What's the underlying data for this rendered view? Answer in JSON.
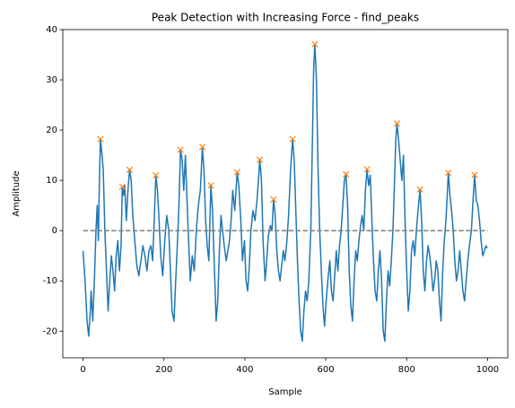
{
  "chart_data": {
    "type": "line",
    "title": "Peak Detection with Increasing Force - find_peaks",
    "xlabel": "Sample",
    "ylabel": "Amplitude",
    "xlim": [
      -50,
      1050
    ],
    "ylim": [
      -25.3,
      40
    ],
    "xticks": [
      0,
      200,
      400,
      600,
      800,
      1000
    ],
    "yticks": [
      -20,
      -10,
      0,
      10,
      20,
      30,
      40
    ],
    "grid": false,
    "series": [
      {
        "color": "#1f77b4",
        "style": "line",
        "x": [
          0,
          5,
          10,
          14,
          18,
          20,
          24,
          28,
          32,
          35,
          38,
          40,
          43,
          47,
          50,
          54,
          58,
          62,
          66,
          70,
          74,
          78,
          82,
          86,
          90,
          94,
          97,
          100,
          103,
          107,
          111,
          115,
          119,
          123,
          128,
          133,
          138,
          143,
          148,
          153,
          158,
          163,
          168,
          172,
          176,
          180,
          184,
          188,
          192,
          197,
          202,
          207,
          212,
          216,
          220,
          225,
          229,
          233,
          237,
          241,
          245,
          249,
          253,
          257,
          261,
          265,
          270,
          275,
          280,
          285,
          290,
          295,
          299,
          303,
          307,
          311,
          316,
          320,
          325,
          329,
          333,
          337,
          341,
          345,
          349,
          354,
          358,
          362,
          366,
          370,
          375,
          381,
          385,
          390,
          394,
          399,
          403,
          407,
          411,
          415,
          420,
          425,
          430,
          437,
          441,
          445,
          450,
          454,
          458,
          463,
          467,
          471,
          475,
          479,
          483,
          487,
          491,
          495,
          499,
          504,
          508,
          513,
          518,
          522,
          526,
          530,
          534,
          538,
          542,
          546,
          550,
          554,
          558,
          563,
          567,
          570,
          573,
          577,
          581,
          585,
          589,
          593,
          597,
          601,
          605,
          610,
          614,
          618,
          622,
          626,
          630,
          634,
          638,
          642,
          646,
          650,
          654,
          658,
          662,
          666,
          670,
          674,
          678,
          682,
          686,
          690,
          694,
          698,
          702,
          706,
          710,
          714,
          718,
          722,
          726,
          730,
          734,
          738,
          742,
          746,
          750,
          754,
          758,
          762,
          766,
          770,
          773,
          776,
          780,
          784,
          788,
          792,
          796,
          800,
          804,
          808,
          812,
          816,
          820,
          824,
          828,
          833,
          837,
          841,
          845,
          849,
          853,
          857,
          861,
          865,
          869,
          873,
          877,
          881,
          885,
          889,
          893,
          897,
          903,
          907,
          911,
          915,
          919,
          923,
          927,
          931,
          935,
          939,
          943,
          947,
          951,
          955,
          960,
          964,
          968,
          972,
          976,
          980,
          984,
          988,
          992,
          996,
          999
        ],
        "values": [
          -4,
          -10,
          -18,
          -21,
          -16,
          -12,
          -18,
          -10,
          0,
          5,
          -2,
          8,
          18.2,
          15,
          12,
          0,
          -8,
          -16,
          -10,
          -5,
          -8,
          -12,
          -5,
          -2,
          -8,
          -3,
          8.7,
          7,
          9,
          2,
          8,
          12.1,
          10,
          3,
          -2,
          -7,
          -9,
          -6,
          -3,
          -5,
          -8,
          -4,
          -3,
          -6,
          2,
          11,
          8,
          2,
          -5,
          -9,
          -2,
          3,
          0,
          -8,
          -16,
          -18,
          -10,
          -3,
          5,
          16.1,
          14,
          8,
          15,
          6,
          -2,
          -10,
          -5,
          -8,
          0,
          5,
          8,
          16.6,
          12,
          2,
          -3,
          -6,
          9,
          4,
          -8,
          -18,
          -14,
          -4,
          3,
          0,
          -3,
          -6,
          -4,
          -2,
          2,
          8,
          4,
          11.6,
          9,
          2,
          -6,
          -2,
          -10,
          -12,
          -7,
          0,
          4,
          2,
          6,
          14.1,
          10,
          -2,
          -10,
          -6,
          -1,
          1,
          0,
          6.2,
          3,
          -4,
          -8,
          -10,
          -7,
          -4,
          -6,
          -2,
          3,
          12,
          18.2,
          14,
          4,
          -6,
          -14,
          -20,
          -22,
          -16,
          -12,
          -14,
          -10,
          0,
          18,
          32,
          37.1,
          30,
          12,
          0,
          -8,
          -15,
          -19,
          -14,
          -10,
          -6,
          -12,
          -14,
          -9,
          -4,
          -8,
          -3,
          0,
          5,
          10,
          11.2,
          5,
          -8,
          -15,
          -18,
          -10,
          -4,
          -6,
          -2,
          1,
          3,
          0,
          8,
          12.2,
          9,
          11,
          2,
          -6,
          -12,
          -14,
          -8,
          -4,
          -10,
          -20,
          -22,
          -14,
          -8,
          -11,
          -6,
          0,
          10,
          18,
          21.3,
          18,
          14,
          10,
          15,
          2,
          -8,
          -16,
          -12,
          -4,
          -2,
          -5,
          0,
          4,
          8.2,
          2,
          -8,
          -12,
          -6,
          -3,
          -5,
          -8,
          -12,
          -10,
          -6,
          -8,
          -14,
          -18,
          -8,
          -2,
          2,
          11.5,
          7,
          4,
          0,
          -6,
          -10,
          -8,
          -4,
          -8,
          -12,
          -14,
          -10,
          -6,
          -3,
          0,
          6,
          11.1,
          6,
          5,
          2,
          -2,
          -5,
          -4,
          -3,
          -3.5
        ]
      },
      {
        "color": "#ff7f0e",
        "style": "marker",
        "x": [
          43,
          97,
          115,
          180,
          241,
          295,
          316,
          381,
          437,
          471,
          518,
          573,
          650,
          702,
          776,
          833,
          903,
          968
        ],
        "values": [
          18.2,
          8.7,
          12.1,
          11,
          16.1,
          16.6,
          9,
          11.6,
          14.1,
          6.2,
          18.2,
          37.1,
          11.2,
          12.2,
          21.3,
          8.2,
          11.5,
          11.1
        ]
      },
      {
        "color": "#808080",
        "style": "dashed",
        "x": [
          0,
          1000
        ],
        "values": [
          0,
          0
        ]
      }
    ]
  }
}
